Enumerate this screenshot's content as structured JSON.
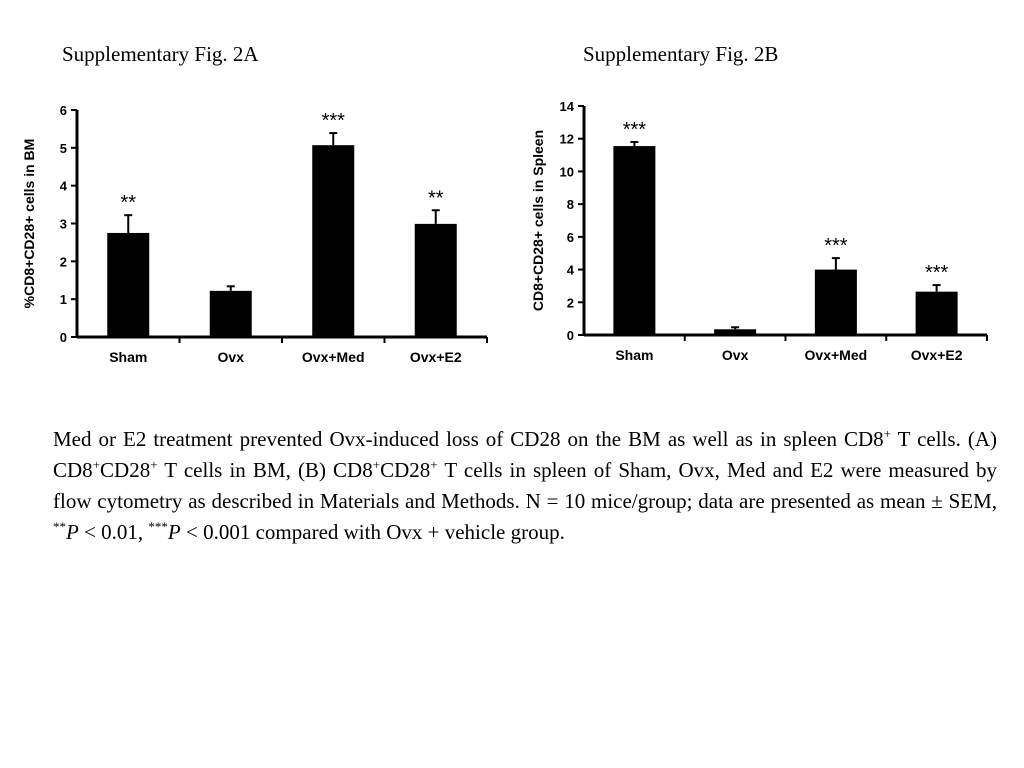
{
  "figures": {
    "a_title": "Supplementary Fig. 2A",
    "b_title": "Supplementary Fig. 2B"
  },
  "chart_data": [
    {
      "type": "bar",
      "title": "",
      "xlabel": "",
      "ylabel": "%CD8+CD28+ cells in BM",
      "categories": [
        "Sham",
        "Ovx",
        "Ovx+Med",
        "Ovx+E2"
      ],
      "values": [
        2.75,
        1.22,
        5.07,
        2.99
      ],
      "errors": [
        0.47,
        0.12,
        0.32,
        0.36
      ],
      "significance": [
        "**",
        "",
        "***",
        "**"
      ],
      "ylim": [
        0,
        6
      ],
      "yticks": [
        0,
        1,
        2,
        3,
        4,
        5,
        6
      ],
      "color": "#000000"
    },
    {
      "type": "bar",
      "title": "",
      "xlabel": "",
      "ylabel": "CD8+CD28+ cells in Spleen",
      "categories": [
        "Sham",
        "Ovx",
        "Ovx+Med",
        "Ovx+E2"
      ],
      "values": [
        11.55,
        0.35,
        4.0,
        2.65
      ],
      "errors": [
        0.25,
        0.12,
        0.7,
        0.4
      ],
      "significance": [
        "***",
        "",
        "***",
        "***"
      ],
      "ylim": [
        0,
        14
      ],
      "yticks": [
        0,
        2,
        4,
        6,
        8,
        10,
        12,
        14
      ],
      "color": "#000000"
    }
  ],
  "caption": {
    "p1": "Med or E2 treatment prevented Ovx-induced loss of CD28 on the BM as well as in spleen CD8",
    "sup1": "+",
    "p2": " T cells. (A)  CD8",
    "sup2": "+",
    "p3": "CD28",
    "sup3": "+",
    "p4": " T cells in BM, (B) CD8",
    "sup4": "+",
    "p5": "CD28",
    "sup5": "+",
    "p6": " T cells in spleen of Sham, Ovx, Med and E2 were measured by flow cytometry as described in Materials and Methods. N = 10 mice/group; data are presented as mean ± SEM, ",
    "sup6": "**",
    "p_italic1": "P",
    "p7": " < 0.01,  ",
    "sup7": "***",
    "p_italic2": "P",
    "p8": " < 0.001 compared with Ovx + vehicle group."
  }
}
